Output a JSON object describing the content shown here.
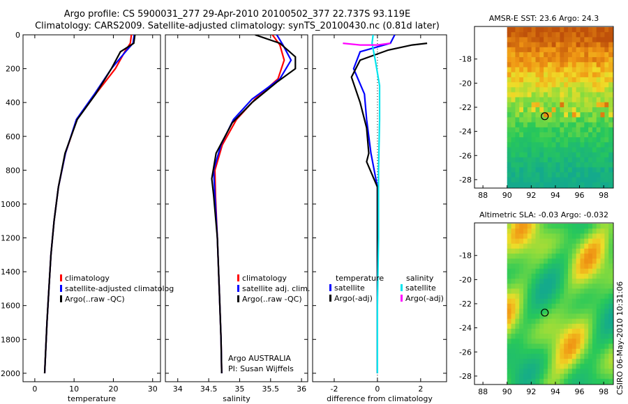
{
  "header": {
    "line1": "Argo profile: CS 5900031_277 29-Apr-2010 20100502_377 22.737S 93.119E",
    "line2": "Climatology: CARS2009. Satellite-adjusted climatology: synTS_20100430.nc (0.81d later)"
  },
  "credit": "CSIRO 06-May-2010 10:31:06",
  "colors": {
    "climatology": "#ff0000",
    "satellite": "#0000ff",
    "argo": "#000000",
    "sat_salt": "#00e5ee",
    "argo_salt": "#ff00ff"
  },
  "chart_data": [
    {
      "type": "line",
      "xlabel": "temperature",
      "ylabel": "",
      "xlim": [
        -3,
        32
      ],
      "ylim": [
        2050,
        0
      ],
      "xticks": [
        "0",
        "10",
        "20",
        "30"
      ],
      "yticks": [
        "0",
        "200",
        "400",
        "600",
        "800",
        "1000",
        "1200",
        "1400",
        "1600",
        "1800",
        "2000"
      ],
      "legend": {
        "placement": "lower-left",
        "entries": [
          "climatology",
          "satellite-adjusted climatolog",
          "Argo(..raw -QC)"
        ]
      },
      "series": [
        {
          "name": "climatology",
          "color": "#ff0000",
          "points": [
            [
              24.6,
              0
            ],
            [
              24.3,
              50
            ],
            [
              22.9,
              100
            ],
            [
              20.5,
              200
            ],
            [
              15.5,
              350
            ],
            [
              10.7,
              500
            ],
            [
              7.8,
              700
            ],
            [
              6,
              900
            ],
            [
              4.9,
              1100
            ],
            [
              4.1,
              1300
            ],
            [
              3.6,
              1500
            ],
            [
              3.1,
              1700
            ],
            [
              2.7,
              1900
            ],
            [
              2.5,
              2000
            ]
          ]
        },
        {
          "name": "satellite-adjusted climatolog",
          "color": "#0000ff",
          "points": [
            [
              25.3,
              0
            ],
            [
              25,
              50
            ],
            [
              23.1,
              100
            ],
            [
              19.5,
              200
            ],
            [
              15.2,
              350
            ],
            [
              10.6,
              500
            ],
            [
              7.8,
              700
            ],
            [
              6,
              900
            ],
            [
              4.9,
              1100
            ],
            [
              4.1,
              1300
            ],
            [
              3.6,
              1500
            ],
            [
              3.1,
              1700
            ],
            [
              2.7,
              1900
            ],
            [
              2.5,
              2000
            ]
          ]
        },
        {
          "name": "Argo(..raw -QC)",
          "color": "#000000",
          "points": [
            [
              25.5,
              0
            ],
            [
              25.2,
              50
            ],
            [
              21.8,
              100
            ],
            [
              19.5,
              200
            ],
            [
              15.5,
              350
            ],
            [
              10.8,
              500
            ],
            [
              7.7,
              700
            ],
            [
              6,
              900
            ],
            [
              4.9,
              1100
            ],
            [
              4.1,
              1300
            ],
            [
              3.6,
              1500
            ],
            [
              3.1,
              1700
            ],
            [
              2.7,
              1900
            ],
            [
              2.5,
              2000
            ]
          ]
        }
      ]
    },
    {
      "type": "line",
      "xlabel": "salinity",
      "xlim": [
        33.8,
        36.1
      ],
      "ylim": [
        2050,
        0
      ],
      "xticks": [
        "34",
        "34.5",
        "35",
        "35.5",
        "36"
      ],
      "legend": {
        "placement": "lower-left",
        "entries": [
          "climatology",
          "satellite adj. clim.",
          "Argo(..raw -QC)"
        ]
      },
      "series": [
        {
          "name": "climatology",
          "color": "#ff0000",
          "points": [
            [
              35.53,
              0
            ],
            [
              35.65,
              60
            ],
            [
              35.72,
              150
            ],
            [
              35.62,
              260
            ],
            [
              35.25,
              380
            ],
            [
              34.95,
              500
            ],
            [
              34.72,
              650
            ],
            [
              34.6,
              800
            ],
            [
              34.61,
              950
            ],
            [
              34.64,
              1200
            ],
            [
              34.67,
              1500
            ],
            [
              34.7,
              1800
            ],
            [
              34.71,
              2000
            ]
          ]
        },
        {
          "name": "satellite adj. clim.",
          "color": "#0000ff",
          "points": [
            [
              35.6,
              0
            ],
            [
              35.7,
              60
            ],
            [
              35.83,
              150
            ],
            [
              35.65,
              260
            ],
            [
              35.2,
              380
            ],
            [
              34.9,
              500
            ],
            [
              34.7,
              650
            ],
            [
              34.58,
              800
            ],
            [
              34.6,
              950
            ],
            [
              34.64,
              1200
            ],
            [
              34.67,
              1500
            ],
            [
              34.7,
              1800
            ],
            [
              34.71,
              2000
            ]
          ]
        },
        {
          "name": "Argo(..raw -QC)",
          "color": "#000000",
          "points": [
            [
              35.25,
              0
            ],
            [
              35.65,
              50
            ],
            [
              35.9,
              130
            ],
            [
              35.9,
              200
            ],
            [
              35.6,
              280
            ],
            [
              35.2,
              400
            ],
            [
              34.88,
              520
            ],
            [
              34.62,
              700
            ],
            [
              34.55,
              850
            ],
            [
              34.58,
              950
            ],
            [
              34.64,
              1200
            ],
            [
              34.67,
              1500
            ],
            [
              34.7,
              1800
            ],
            [
              34.71,
              2000
            ]
          ]
        }
      ],
      "annotations": [
        "Argo AUSTRALIA",
        "PI: Susan Wijffels"
      ]
    },
    {
      "type": "line",
      "xlabel": "difference from climatology",
      "xlim": [
        -3,
        3.2
      ],
      "ylim": [
        2050,
        0
      ],
      "xticks": [
        "-2",
        "0",
        "2"
      ],
      "legend": {
        "placement": "lower-left",
        "headers": [
          "temperature",
          "salinity"
        ],
        "entries": [
          "satellite",
          "Argo(-adj)",
          "satellite",
          "Argo(-adj)"
        ]
      },
      "series": [
        {
          "name": "satellite",
          "group": "temperature",
          "color": "#0000ff",
          "points": [
            [
              0.8,
              0
            ],
            [
              0.6,
              50
            ],
            [
              -0.8,
              100
            ],
            [
              -1.1,
              200
            ],
            [
              -0.6,
              350
            ],
            [
              -0.5,
              500
            ],
            [
              -0.3,
              700
            ],
            [
              0,
              900
            ],
            [
              0,
              1100
            ],
            [
              0,
              1400
            ],
            [
              0,
              1700
            ],
            [
              0,
              2000
            ]
          ]
        },
        {
          "name": "Argo(-adj)",
          "group": "temperature",
          "color": "#000000",
          "points": [
            [
              2.3,
              50
            ],
            [
              1.6,
              60
            ],
            [
              0.5,
              90
            ],
            [
              -0.8,
              150
            ],
            [
              -1.2,
              250
            ],
            [
              -0.8,
              400
            ],
            [
              -0.5,
              550
            ],
            [
              -0.4,
              700
            ],
            [
              -0.5,
              750
            ],
            [
              0,
              900
            ],
            [
              0,
              1200
            ],
            [
              0,
              1600
            ],
            [
              0,
              2000
            ]
          ]
        },
        {
          "name": "satellite",
          "group": "salinity",
          "color": "#00e5ee",
          "points": [
            [
              -0.2,
              0
            ],
            [
              -0.25,
              50
            ],
            [
              -0.1,
              150
            ],
            [
              0.1,
              300
            ],
            [
              0.1,
              500
            ],
            [
              0.05,
              800
            ],
            [
              0.05,
              1200
            ],
            [
              0,
              1600
            ],
            [
              0,
              2000
            ]
          ]
        },
        {
          "name": "Argo(-adj)",
          "group": "salinity",
          "color": "#ff00ff",
          "points": [
            [
              -1.6,
              50
            ],
            [
              -0.8,
              60
            ],
            [
              0,
              60
            ],
            [
              0.6,
              50
            ]
          ]
        }
      ]
    },
    {
      "type": "heatmap",
      "title": "AMSR-E SST: 23.6 Argo: 24.3",
      "xlim": [
        87.3,
        98.8
      ],
      "ylim": [
        -28.7,
        -15.3
      ],
      "xticks": [
        "88",
        "90",
        "92",
        "94",
        "96",
        "98"
      ],
      "yticks": [
        "-18",
        "-20",
        "-22",
        "-24",
        "-26",
        "-28"
      ],
      "argo_position": [
        93.12,
        -22.74
      ]
    },
    {
      "type": "heatmap",
      "title": "Altimetric SLA: -0.03 Argo: -0.032",
      "xlim": [
        87.3,
        98.8
      ],
      "ylim": [
        -28.7,
        -15.3
      ],
      "xticks": [
        "88",
        "90",
        "92",
        "94",
        "96",
        "98"
      ],
      "yticks": [
        "-18",
        "-20",
        "-22",
        "-24",
        "-26",
        "-28"
      ],
      "argo_position": [
        93.12,
        -22.74
      ]
    }
  ]
}
